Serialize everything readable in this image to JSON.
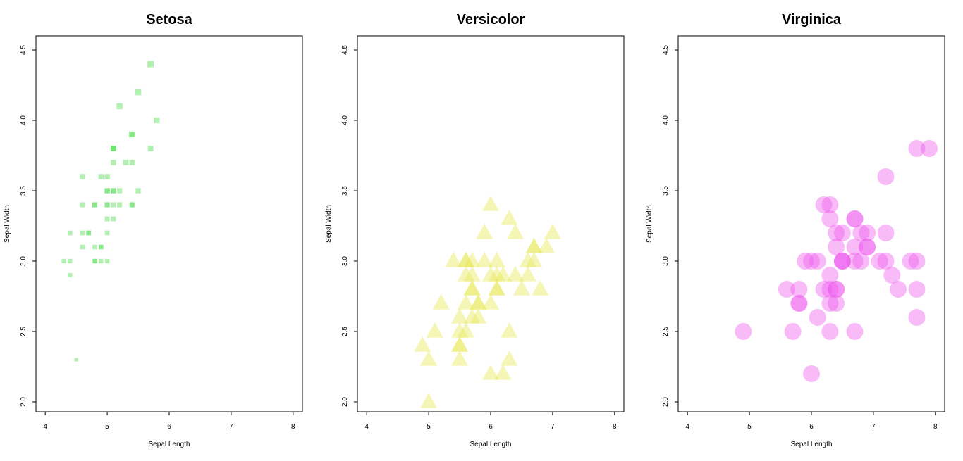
{
  "chart_data": [
    {
      "type": "scatter",
      "title": "Setosa",
      "xlabel": "Sepal Length",
      "ylabel": "Sepal Width",
      "xlim": [
        3.85,
        8.15
      ],
      "ylim": [
        1.93,
        4.6
      ],
      "xticks": [
        "4",
        "5",
        "6",
        "7",
        "8"
      ],
      "yticks": [
        "2.0",
        "2.5",
        "3.0",
        "3.5",
        "4.0",
        "4.5"
      ],
      "marker": "square",
      "color": "#55dd55",
      "points": [
        [
          4.3,
          3.0
        ],
        [
          4.4,
          2.9
        ],
        [
          4.4,
          3.0
        ],
        [
          4.4,
          3.2
        ],
        [
          4.5,
          2.3
        ],
        [
          4.6,
          3.1
        ],
        [
          4.6,
          3.2
        ],
        [
          4.6,
          3.4
        ],
        [
          4.6,
          3.6
        ],
        [
          4.7,
          3.2
        ],
        [
          4.7,
          3.2
        ],
        [
          4.8,
          3.0
        ],
        [
          4.8,
          3.0
        ],
        [
          4.8,
          3.1
        ],
        [
          4.8,
          3.4
        ],
        [
          4.8,
          3.4
        ],
        [
          4.9,
          3.0
        ],
        [
          4.9,
          3.1
        ],
        [
          4.9,
          3.1
        ],
        [
          4.9,
          3.6
        ],
        [
          5.0,
          3.0
        ],
        [
          5.0,
          3.2
        ],
        [
          5.0,
          3.3
        ],
        [
          5.0,
          3.4
        ],
        [
          5.0,
          3.4
        ],
        [
          5.0,
          3.5
        ],
        [
          5.0,
          3.5
        ],
        [
          5.0,
          3.6
        ],
        [
          5.1,
          3.3
        ],
        [
          5.1,
          3.4
        ],
        [
          5.1,
          3.5
        ],
        [
          5.1,
          3.5
        ],
        [
          5.1,
          3.7
        ],
        [
          5.1,
          3.8
        ],
        [
          5.1,
          3.8
        ],
        [
          5.1,
          3.8
        ],
        [
          5.2,
          3.4
        ],
        [
          5.2,
          3.5
        ],
        [
          5.2,
          4.1
        ],
        [
          5.3,
          3.7
        ],
        [
          5.4,
          3.4
        ],
        [
          5.4,
          3.4
        ],
        [
          5.4,
          3.7
        ],
        [
          5.4,
          3.9
        ],
        [
          5.4,
          3.9
        ],
        [
          5.5,
          3.5
        ],
        [
          5.5,
          4.2
        ],
        [
          5.7,
          3.8
        ],
        [
          5.7,
          4.4
        ],
        [
          5.8,
          4.0
        ]
      ]
    },
    {
      "type": "scatter",
      "title": "Versicolor",
      "xlabel": "Sepal Length",
      "ylabel": "Sepal Width",
      "xlim": [
        3.85,
        8.15
      ],
      "ylim": [
        1.93,
        4.6
      ],
      "xticks": [
        "4",
        "5",
        "6",
        "7",
        "8"
      ],
      "yticks": [
        "2.0",
        "2.5",
        "3.0",
        "3.5",
        "4.0",
        "4.5"
      ],
      "marker": "triangle",
      "color": "#e6e650",
      "points": [
        [
          4.9,
          2.4
        ],
        [
          5.0,
          2.0
        ],
        [
          5.0,
          2.3
        ],
        [
          5.1,
          2.5
        ],
        [
          5.2,
          2.7
        ],
        [
          5.4,
          3.0
        ],
        [
          5.5,
          2.3
        ],
        [
          5.5,
          2.4
        ],
        [
          5.5,
          2.4
        ],
        [
          5.5,
          2.5
        ],
        [
          5.5,
          2.6
        ],
        [
          5.6,
          2.5
        ],
        [
          5.6,
          2.7
        ],
        [
          5.6,
          2.9
        ],
        [
          5.6,
          3.0
        ],
        [
          5.6,
          3.0
        ],
        [
          5.7,
          2.6
        ],
        [
          5.7,
          2.8
        ],
        [
          5.7,
          2.8
        ],
        [
          5.7,
          2.9
        ],
        [
          5.7,
          3.0
        ],
        [
          5.8,
          2.6
        ],
        [
          5.8,
          2.7
        ],
        [
          5.8,
          2.7
        ],
        [
          5.9,
          3.0
        ],
        [
          5.9,
          3.2
        ],
        [
          6.0,
          2.2
        ],
        [
          6.0,
          2.7
        ],
        [
          6.0,
          2.9
        ],
        [
          6.0,
          3.4
        ],
        [
          6.1,
          2.8
        ],
        [
          6.1,
          2.8
        ],
        [
          6.1,
          2.9
        ],
        [
          6.1,
          3.0
        ],
        [
          6.2,
          2.2
        ],
        [
          6.2,
          2.9
        ],
        [
          6.3,
          2.3
        ],
        [
          6.3,
          2.5
        ],
        [
          6.3,
          3.3
        ],
        [
          6.4,
          2.9
        ],
        [
          6.4,
          3.2
        ],
        [
          6.5,
          2.8
        ],
        [
          6.6,
          2.9
        ],
        [
          6.6,
          3.0
        ],
        [
          6.7,
          3.0
        ],
        [
          6.7,
          3.1
        ],
        [
          6.7,
          3.1
        ],
        [
          6.8,
          2.8
        ],
        [
          6.9,
          3.1
        ],
        [
          7.0,
          3.2
        ]
      ]
    },
    {
      "type": "scatter",
      "title": "Virginica",
      "xlabel": "Sepal Length",
      "ylabel": "Sepal Width",
      "xlim": [
        3.85,
        8.15
      ],
      "ylim": [
        1.93,
        4.6
      ],
      "xticks": [
        "4",
        "5",
        "6",
        "7",
        "8"
      ],
      "yticks": [
        "2.0",
        "2.5",
        "3.0",
        "3.5",
        "4.0",
        "4.5"
      ],
      "marker": "circle",
      "color": "#ee55ee",
      "points": [
        [
          4.9,
          2.5
        ],
        [
          5.6,
          2.8
        ],
        [
          5.7,
          2.5
        ],
        [
          5.8,
          2.7
        ],
        [
          5.8,
          2.7
        ],
        [
          5.8,
          2.8
        ],
        [
          5.9,
          3.0
        ],
        [
          6.0,
          2.2
        ],
        [
          6.0,
          3.0
        ],
        [
          6.1,
          2.6
        ],
        [
          6.1,
          3.0
        ],
        [
          6.2,
          2.8
        ],
        [
          6.2,
          3.4
        ],
        [
          6.3,
          2.5
        ],
        [
          6.3,
          2.7
        ],
        [
          6.3,
          2.8
        ],
        [
          6.3,
          2.9
        ],
        [
          6.3,
          3.3
        ],
        [
          6.3,
          3.4
        ],
        [
          6.4,
          2.7
        ],
        [
          6.4,
          2.8
        ],
        [
          6.4,
          2.8
        ],
        [
          6.4,
          3.1
        ],
        [
          6.4,
          3.2
        ],
        [
          6.5,
          3.0
        ],
        [
          6.5,
          3.0
        ],
        [
          6.5,
          3.0
        ],
        [
          6.5,
          3.2
        ],
        [
          6.7,
          2.5
        ],
        [
          6.7,
          3.0
        ],
        [
          6.7,
          3.1
        ],
        [
          6.7,
          3.3
        ],
        [
          6.7,
          3.3
        ],
        [
          6.8,
          3.0
        ],
        [
          6.8,
          3.2
        ],
        [
          6.9,
          3.1
        ],
        [
          6.9,
          3.1
        ],
        [
          6.9,
          3.2
        ],
        [
          7.1,
          3.0
        ],
        [
          7.2,
          3.0
        ],
        [
          7.2,
          3.2
        ],
        [
          7.2,
          3.6
        ],
        [
          7.3,
          2.9
        ],
        [
          7.4,
          2.8
        ],
        [
          7.6,
          3.0
        ],
        [
          7.7,
          2.6
        ],
        [
          7.7,
          2.8
        ],
        [
          7.7,
          3.0
        ],
        [
          7.7,
          3.8
        ],
        [
          7.9,
          3.8
        ]
      ]
    }
  ]
}
